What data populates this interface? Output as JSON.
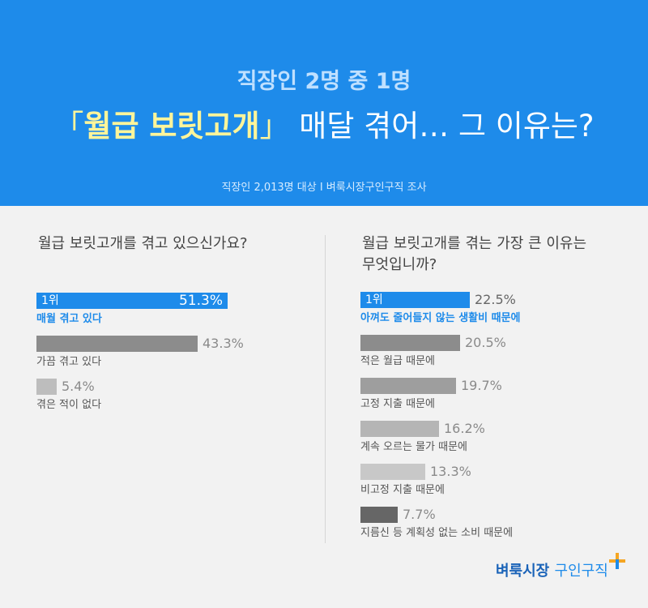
{
  "header": {
    "subtitle": "직장인 2명 중 1명",
    "title_open": "「",
    "title_highlight": "월급 보릿고개",
    "title_close": "」",
    "title_rest": " 매달 겪어… 그 이유는?",
    "source": "직장인 2,013명 대상  I  벼룩시장구인구직 조사"
  },
  "logo": {
    "brand": "벼룩시장",
    "service": "구인구직"
  },
  "colors": {
    "accent": "#1e8bea",
    "header_bg": "#1e8bea",
    "highlight": "#fff59a"
  },
  "chart_data": [
    {
      "type": "bar",
      "title": "월급 보릿고개를 겪고 있으신가요?",
      "rank_label": "1위",
      "categories": [
        "매월 겪고 있다",
        "가끔 겪고 있다",
        "겪은 적이 없다"
      ],
      "values": [
        51.3,
        43.3,
        5.4
      ],
      "value_labels": [
        "51.3%",
        "43.3%",
        "5.4%"
      ],
      "unit": "%",
      "colors": [
        "#1e8bea",
        "#8c8c8c",
        "#bdbdbd"
      ],
      "orientation": "horizontal"
    },
    {
      "type": "bar",
      "title": "월급 보릿고개를 겪는 가장 큰 이유는 무엇입니까?",
      "title_lines": [
        "월급 보릿고개를 겪는 가장 큰 이유는",
        "무엇입니까?"
      ],
      "rank_label": "1위",
      "categories": [
        "아껴도 줄어들지 않는 생활비 때문에",
        "적은 월급 때문에",
        "고정 지출 때문에",
        "계속 오르는 물가 때문에",
        "비고정 지출 때문에",
        "지름신 등 계획성 없는 소비 때문에"
      ],
      "values": [
        22.5,
        20.5,
        19.7,
        16.2,
        13.3,
        7.7
      ],
      "value_labels": [
        "22.5%",
        "20.5%",
        "19.7%",
        "16.2%",
        "13.3%",
        "7.7%"
      ],
      "unit": "%",
      "colors": [
        "#1e8bea",
        "#8c8c8c",
        "#9e9e9e",
        "#b5b5b5",
        "#c8c8c8",
        "#666666"
      ],
      "orientation": "horizontal"
    }
  ]
}
